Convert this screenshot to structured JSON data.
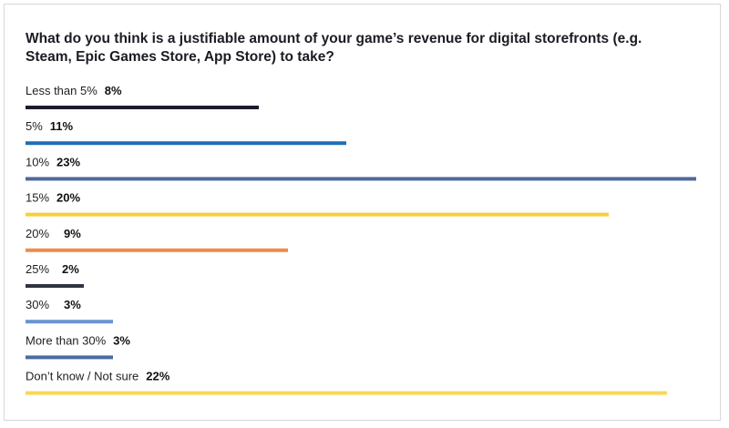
{
  "chart_data": {
    "type": "bar",
    "orientation": "horizontal",
    "title": "What do you think is a justifiable amount of your game’s revenue for digital storefronts (e.g. Steam, Epic Games Store, App Store) to take?",
    "categories": [
      "Less than 5%",
      "5%",
      "10%",
      "15%",
      "20%",
      "25%",
      "30%",
      "More than 30%",
      "Don’t know / Not sure"
    ],
    "values": [
      8,
      11,
      23,
      20,
      9,
      2,
      3,
      3,
      22
    ],
    "value_labels": [
      "8%",
      "11%",
      "23%",
      "20%",
      "9%",
      "2%",
      "3%",
      "3%",
      "22%"
    ],
    "colors": [
      "#1b1b2a",
      "#1f6fb8",
      "#4f6a9c",
      "#f6cf3c",
      "#ee8d4a",
      "#2e3440",
      "#6a93d3",
      "#4b6aa3",
      "#f8d85a"
    ],
    "xlim": [
      0,
      23
    ],
    "grid": false,
    "legend": "none"
  }
}
